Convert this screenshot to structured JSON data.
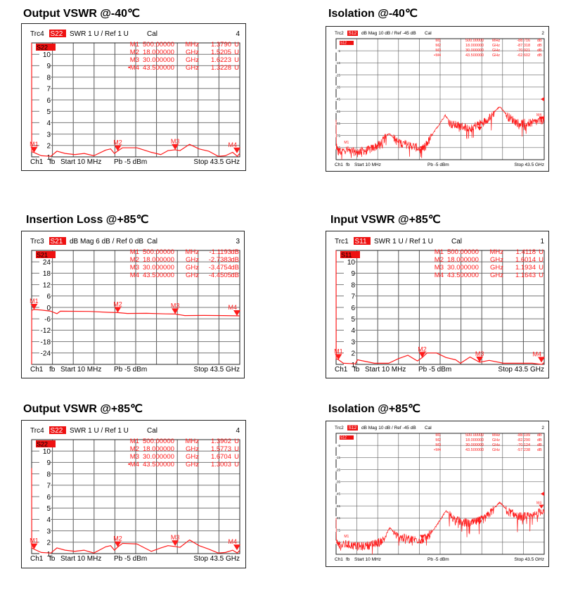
{
  "colors": {
    "trace": "#ff1a1a",
    "tag": "#ee1111",
    "grid": "#555555",
    "text": "#000000"
  },
  "chart_data": [
    {
      "type": "line",
      "style": "large",
      "title": "Output VSWR @-40℃",
      "header": {
        "trace": "Trc4",
        "param": "S22",
        "format": "SWR  1 U /  Ref 1 U",
        "cal": "Cal",
        "num": "4"
      },
      "footer": {
        "ch": "Ch1",
        "fb": "fb",
        "start": "Start  10 MHz",
        "power": "Pb   -5 dBm",
        "stop": "Stop  43.5 GHz"
      },
      "xlim": [
        0,
        43.5
      ],
      "ylim": [
        1,
        11
      ],
      "yticks": [
        "1",
        "2",
        "3",
        "4",
        "5",
        "6",
        "7",
        "8",
        "9",
        "10"
      ],
      "ytick_values": [
        1,
        2,
        3,
        4,
        5,
        6,
        7,
        8,
        9,
        10
      ],
      "noise": 0,
      "trace": [
        [
          0,
          11
        ],
        [
          0.02,
          1.45
        ],
        [
          0.5,
          1.38
        ],
        [
          2,
          1.1
        ],
        [
          4,
          1.05
        ],
        [
          5.3,
          1.5
        ],
        [
          7,
          1.3
        ],
        [
          9,
          1.2
        ],
        [
          11,
          1.3
        ],
        [
          13,
          1.1
        ],
        [
          15.5,
          1.6
        ],
        [
          16.5,
          1.7
        ],
        [
          17.3,
          1.3
        ],
        [
          18,
          1.52
        ],
        [
          19,
          1.8
        ],
        [
          22,
          1.8
        ],
        [
          25,
          1.4
        ],
        [
          27,
          1.2
        ],
        [
          28.5,
          1.55
        ],
        [
          30,
          1.62
        ],
        [
          31,
          1.55
        ],
        [
          33,
          2.1
        ],
        [
          35,
          1.7
        ],
        [
          37,
          1.5
        ],
        [
          39,
          1.05
        ],
        [
          40.5,
          1.1
        ],
        [
          42,
          1.4
        ],
        [
          43,
          1.05
        ],
        [
          43.5,
          1.32
        ]
      ],
      "markers": [
        {
          "name": "M1",
          "freq": "500.00000",
          "freq_unit": "MHz",
          "value": "1.3790",
          "value_unit": "U",
          "x": 0.5,
          "y": 1.379,
          "active": false
        },
        {
          "name": "M2",
          "freq": "18.000000",
          "freq_unit": "GHz",
          "value": "1.5205",
          "value_unit": "U",
          "x": 18,
          "y": 1.5205,
          "active": false
        },
        {
          "name": "M3",
          "freq": "30.000000",
          "freq_unit": "GHz",
          "value": "1.6223",
          "value_unit": "U",
          "x": 30,
          "y": 1.6223,
          "active": false
        },
        {
          "name": "M4",
          "freq": "43.500000",
          "freq_unit": "GHz",
          "value": "1.3228",
          "value_unit": "U",
          "x": 43.5,
          "y": 1.3228,
          "active": true
        }
      ]
    },
    {
      "type": "line",
      "style": "small",
      "title": "Isolation @-40℃",
      "header": {
        "trace": "Trc2",
        "param": "S12",
        "format": "dB Mag   10 dB /   Ref -45 dB",
        "cal": "Cal",
        "num": "2"
      },
      "footer": {
        "ch": "Ch1",
        "fb": "fb",
        "start": "Start  10 MHz",
        "power": "Pb   -5 dBm",
        "stop": "Stop  43.5 GHz"
      },
      "xlim": [
        0,
        43.5
      ],
      "ylim": [
        -95,
        5
      ],
      "yticks": [
        "-5",
        "-15",
        "-25",
        "-35",
        "-45",
        "-55",
        "-65",
        "-75",
        "-85"
      ],
      "ytick_values": [
        -5,
        -15,
        -25,
        -35,
        -45,
        -55,
        -65,
        -75,
        -85
      ],
      "reference_level": -45,
      "noise": 7,
      "trace": [
        [
          0,
          -62
        ],
        [
          0.05,
          -84
        ],
        [
          0.5,
          -88.7
        ],
        [
          2,
          -86
        ],
        [
          4,
          -88
        ],
        [
          7,
          -86
        ],
        [
          9,
          -82
        ],
        [
          11,
          -73
        ],
        [
          13,
          -80
        ],
        [
          16,
          -83
        ],
        [
          18,
          -86
        ],
        [
          19.5,
          -78
        ],
        [
          22.8,
          -58
        ],
        [
          24,
          -65
        ],
        [
          28,
          -68
        ],
        [
          31,
          -63
        ],
        [
          34.2,
          -51
        ],
        [
          36,
          -59
        ],
        [
          38,
          -64
        ],
        [
          41,
          -64
        ],
        [
          43.5,
          -61
        ]
      ],
      "markers": [
        {
          "name": "M1",
          "freq": "500.00000",
          "freq_unit": "MHz",
          "value": "-88.716",
          "value_unit": "dB",
          "x": 0.5,
          "y": -88.716,
          "active": false
        },
        {
          "name": "M2",
          "freq": "18.000000",
          "freq_unit": "GHz",
          "value": "-87.318",
          "value_unit": "dB",
          "x": 18,
          "y": -87.318,
          "active": false
        },
        {
          "name": "M3",
          "freq": "30.000000",
          "freq_unit": "GHz",
          "value": "-70.921",
          "value_unit": "dB",
          "x": 30,
          "y": -70.921,
          "active": false
        },
        {
          "name": "M4",
          "freq": "43.500000",
          "freq_unit": "GHz",
          "value": "-62.602",
          "value_unit": "dB",
          "x": 43.5,
          "y": -62.602,
          "active": true
        }
      ]
    },
    {
      "type": "line",
      "style": "large",
      "title": "Insertion Loss @+85℃",
      "header": {
        "trace": "Trc3",
        "param": "S21",
        "format": "dB Mag   6 dB /  Ref 0 dB",
        "cal": "Cal",
        "num": "3"
      },
      "footer": {
        "ch": "Ch1",
        "fb": "fb",
        "start": "Start  10 MHz",
        "power": "Pb   -5 dBm",
        "stop": "Stop  43.5 GHz"
      },
      "xlim": [
        0,
        43.5
      ],
      "ylim": [
        -30,
        30
      ],
      "yticks": [
        "24",
        "18",
        "12",
        "6",
        "0",
        "-6",
        "-12",
        "-18",
        "-24"
      ],
      "ytick_values": [
        24,
        18,
        12,
        6,
        0,
        -6,
        -12,
        -18,
        -24
      ],
      "noise": 0,
      "trace": [
        [
          0,
          -30
        ],
        [
          0.02,
          -1.5
        ],
        [
          0.5,
          -1.12
        ],
        [
          2,
          -1.4
        ],
        [
          4,
          -2.0
        ],
        [
          5.3,
          -3.3
        ],
        [
          6,
          -2.0
        ],
        [
          12,
          -2.1
        ],
        [
          16,
          -2.6
        ],
        [
          18,
          -2.74
        ],
        [
          20,
          -3.2
        ],
        [
          24,
          -3.1
        ],
        [
          28,
          -3.4
        ],
        [
          30,
          -3.48
        ],
        [
          32,
          -4.3
        ],
        [
          36,
          -4.2
        ],
        [
          40,
          -4.3
        ],
        [
          43.5,
          -4.45
        ]
      ],
      "markers": [
        {
          "name": "M1",
          "freq": "500.00000",
          "freq_unit": "MHz",
          "value": "-1.1193",
          "value_unit": "dB",
          "x": 0.5,
          "y": -1.1193,
          "active": false
        },
        {
          "name": "M2",
          "freq": "18.000000",
          "freq_unit": "GHz",
          "value": "-2.7383",
          "value_unit": "dB",
          "x": 18,
          "y": -2.7383,
          "active": false
        },
        {
          "name": "M3",
          "freq": "30.000000",
          "freq_unit": "GHz",
          "value": "-3.4754",
          "value_unit": "dB",
          "x": 30,
          "y": -3.4754,
          "active": false
        },
        {
          "name": "M4",
          "freq": "43.500000",
          "freq_unit": "GHz",
          "value": "-4.4505",
          "value_unit": "dB",
          "x": 43.5,
          "y": -4.4505,
          "active": false
        }
      ]
    },
    {
      "type": "line",
      "style": "large",
      "title": "Input VSWR @+85℃",
      "header": {
        "trace": "Trc1",
        "param": "S11",
        "format": "SWR  1 U /  Ref 1 U",
        "cal": "Cal",
        "num": "1"
      },
      "footer": {
        "ch": "Ch1",
        "fb": "fb",
        "start": "Start  10 MHz",
        "power": "Pb   -5 dBm",
        "stop": "Stop  43.5 GHz"
      },
      "xlim": [
        0,
        43.5
      ],
      "ylim": [
        1,
        11
      ],
      "yticks": [
        "1",
        "2",
        "3",
        "4",
        "5",
        "6",
        "7",
        "8",
        "9",
        "10"
      ],
      "ytick_values": [
        1,
        2,
        3,
        4,
        5,
        6,
        7,
        8,
        9,
        10
      ],
      "noise": 0,
      "trace": [
        [
          0,
          11
        ],
        [
          0.02,
          1.5
        ],
        [
          0.5,
          1.41
        ],
        [
          1.5,
          1.1
        ],
        [
          4,
          1.05
        ],
        [
          4.5,
          1.4
        ],
        [
          8,
          1.1
        ],
        [
          11,
          1.1
        ],
        [
          13,
          1.5
        ],
        [
          15,
          1.8
        ],
        [
          17,
          1.3
        ],
        [
          18,
          1.6
        ],
        [
          19,
          2.0
        ],
        [
          21,
          2.0
        ],
        [
          23,
          1.6
        ],
        [
          25,
          1.4
        ],
        [
          26,
          1.1
        ],
        [
          28,
          1.65
        ],
        [
          30,
          1.19
        ],
        [
          32,
          1.35
        ],
        [
          35,
          1.1
        ],
        [
          38,
          1.1
        ],
        [
          41,
          1.1
        ],
        [
          43,
          1.0
        ],
        [
          43.5,
          1.16
        ]
      ],
      "markers": [
        {
          "name": "M1",
          "freq": "500.00000",
          "freq_unit": "MHz",
          "value": "1.4118",
          "value_unit": "U",
          "x": 0.5,
          "y": 1.4118,
          "active": false
        },
        {
          "name": "M2",
          "freq": "18.000000",
          "freq_unit": "GHz",
          "value": "1.6014",
          "value_unit": "U",
          "x": 18,
          "y": 1.6014,
          "active": false
        },
        {
          "name": "M3",
          "freq": "30.000000",
          "freq_unit": "GHz",
          "value": "1.1934",
          "value_unit": "U",
          "x": 30,
          "y": 1.1934,
          "active": false
        },
        {
          "name": "M4",
          "freq": "43.500000",
          "freq_unit": "GHz",
          "value": "1.1643",
          "value_unit": "U",
          "x": 43.5,
          "y": 1.1643,
          "active": false
        }
      ]
    },
    {
      "type": "line",
      "style": "large",
      "title": "Output VSWR @+85℃",
      "header": {
        "trace": "Trc4",
        "param": "S22",
        "format": "SWR  1 U /  Ref 1 U",
        "cal": "Cal",
        "num": "4"
      },
      "footer": {
        "ch": "Ch1",
        "fb": "fb",
        "start": "Start  10 MHz",
        "power": "Pb   -5 dBm",
        "stop": "Stop  43.5 GHz"
      },
      "xlim": [
        0,
        43.5
      ],
      "ylim": [
        1,
        11
      ],
      "yticks": [
        "1",
        "2",
        "3",
        "4",
        "5",
        "6",
        "7",
        "8",
        "9",
        "10"
      ],
      "ytick_values": [
        1,
        2,
        3,
        4,
        5,
        6,
        7,
        8,
        9,
        10
      ],
      "noise": 0,
      "trace": [
        [
          0,
          8.5
        ],
        [
          0.02,
          1.5
        ],
        [
          0.5,
          1.39
        ],
        [
          2,
          1.1
        ],
        [
          4,
          1.05
        ],
        [
          5.3,
          1.5
        ],
        [
          7,
          1.3
        ],
        [
          9,
          1.2
        ],
        [
          11,
          1.3
        ],
        [
          13,
          1.05
        ],
        [
          15.5,
          1.6
        ],
        [
          16.5,
          1.7
        ],
        [
          17.3,
          1.3
        ],
        [
          18,
          1.58
        ],
        [
          19,
          1.9
        ],
        [
          22,
          1.85
        ],
        [
          25,
          1.2
        ],
        [
          27,
          1.5
        ],
        [
          28.5,
          1.7
        ],
        [
          30,
          1.62
        ],
        [
          31,
          1.55
        ],
        [
          33,
          2.2
        ],
        [
          35,
          1.7
        ],
        [
          37,
          1.4
        ],
        [
          39,
          1.05
        ],
        [
          40.5,
          1.1
        ],
        [
          42,
          1.3
        ],
        [
          43,
          1.05
        ],
        [
          43.5,
          1.3
        ]
      ],
      "markers": [
        {
          "name": "M1",
          "freq": "500.00000",
          "freq_unit": "MHz",
          "value": "1.3902",
          "value_unit": "U",
          "x": 0.5,
          "y": 1.3902,
          "active": false
        },
        {
          "name": "M2",
          "freq": "18.000000",
          "freq_unit": "GHz",
          "value": "1.5773",
          "value_unit": "U",
          "x": 18,
          "y": 1.5773,
          "active": false
        },
        {
          "name": "M3",
          "freq": "30.000000",
          "freq_unit": "GHz",
          "value": "1.6704",
          "value_unit": "U",
          "x": 30,
          "y": 1.6704,
          "active": false
        },
        {
          "name": "M4",
          "freq": "43.500000",
          "freq_unit": "GHz",
          "value": "1.3003",
          "value_unit": "U",
          "x": 43.5,
          "y": 1.3003,
          "active": true
        }
      ]
    },
    {
      "type": "line",
      "style": "small",
      "title": "Isolation @+85℃",
      "header": {
        "trace": "Trc2",
        "param": "S12",
        "format": "dB Mag   10 dB /   Ref -45 dB",
        "cal": "Cal",
        "num": "2"
      },
      "footer": {
        "ch": "Ch1",
        "fb": "fb",
        "start": "Start  10 MHz",
        "power": "Pb   -5 dBm",
        "stop": "Stop  43.5 GHz"
      },
      "xlim": [
        0,
        43.5
      ],
      "ylim": [
        -95,
        5
      ],
      "yticks": [
        "-5",
        "-15",
        "-25",
        "-35",
        "-45",
        "-55",
        "-65",
        "-75",
        "-85"
      ],
      "ytick_values": [
        -5,
        -15,
        -25,
        -35,
        -45,
        -55,
        -65,
        -75,
        -85
      ],
      "reference_level": -45,
      "noise": 7,
      "trace": [
        [
          0,
          -65
        ],
        [
          0.05,
          -84
        ],
        [
          0.5,
          -88.2
        ],
        [
          2,
          -86
        ],
        [
          5,
          -88
        ],
        [
          8,
          -86
        ],
        [
          10,
          -82
        ],
        [
          11.2,
          -73
        ],
        [
          13,
          -80
        ],
        [
          16,
          -82
        ],
        [
          18,
          -82.3
        ],
        [
          20,
          -77
        ],
        [
          23,
          -59
        ],
        [
          25,
          -66
        ],
        [
          28,
          -69
        ],
        [
          31,
          -65
        ],
        [
          34.2,
          -52
        ],
        [
          36,
          -59
        ],
        [
          38,
          -63
        ],
        [
          41,
          -63
        ],
        [
          43.5,
          -57.2
        ]
      ],
      "markers": [
        {
          "name": "M1",
          "freq": "500.00000",
          "freq_unit": "MHz",
          "value": "-88.199",
          "value_unit": "dB",
          "x": 0.5,
          "y": -88.199,
          "active": false
        },
        {
          "name": "M2",
          "freq": "18.000000",
          "freq_unit": "GHz",
          "value": "-82.290",
          "value_unit": "dB",
          "x": 18,
          "y": -82.29,
          "active": false
        },
        {
          "name": "M3",
          "freq": "30.000000",
          "freq_unit": "GHz",
          "value": "-70.124",
          "value_unit": "dB",
          "x": 30,
          "y": -70.124,
          "active": false
        },
        {
          "name": "M4",
          "freq": "43.500000",
          "freq_unit": "GHz",
          "value": "-57.238",
          "value_unit": "dB",
          "x": 43.5,
          "y": -57.238,
          "active": true
        }
      ]
    }
  ]
}
